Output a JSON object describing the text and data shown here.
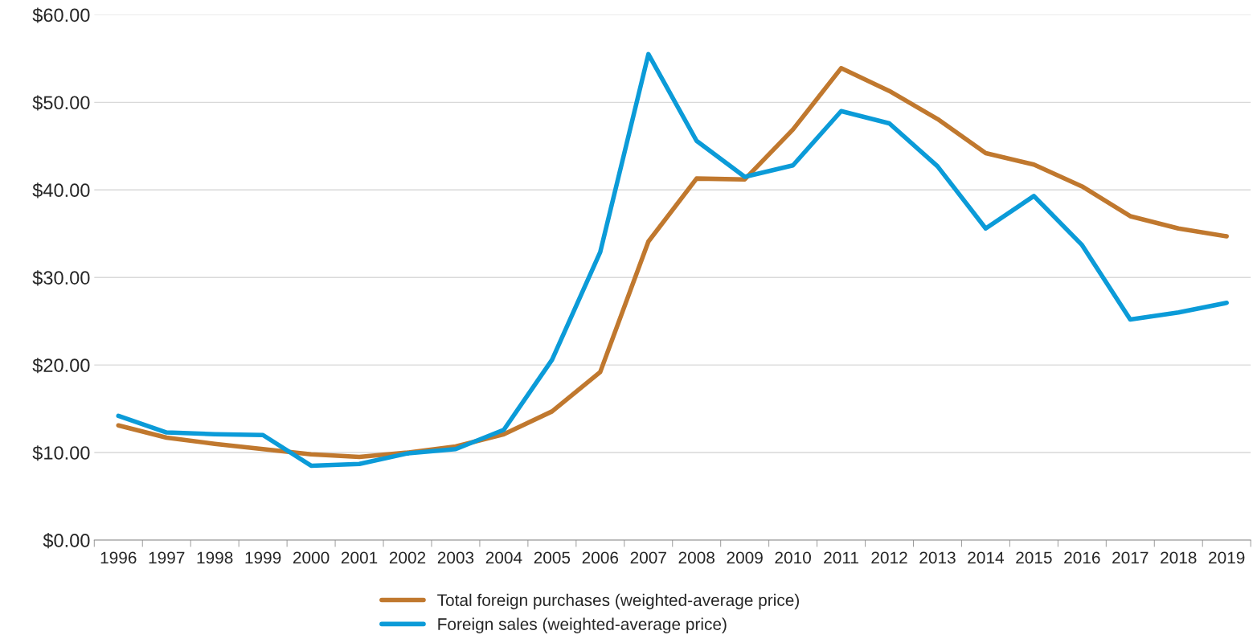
{
  "chart_data": {
    "type": "line",
    "categories": [
      "1996",
      "1997",
      "1998",
      "1999",
      "2000",
      "2001",
      "2002",
      "2003",
      "2004",
      "2005",
      "2006",
      "2007",
      "2008",
      "2009",
      "2010",
      "2011",
      "2012",
      "2013",
      "2014",
      "2015",
      "2016",
      "2017",
      "2018",
      "2019"
    ],
    "series": [
      {
        "name": "Total foreign purchases (weighted-average price)",
        "color": "#c0782e",
        "values": [
          13.1,
          11.7,
          11.0,
          10.4,
          9.8,
          9.5,
          10.0,
          10.7,
          12.1,
          14.7,
          19.2,
          34.1,
          41.3,
          41.2,
          46.9,
          53.9,
          51.3,
          48.1,
          44.2,
          42.9,
          40.4,
          37.0,
          35.6,
          34.7
        ]
      },
      {
        "name": "Foreign sales (weighted-average price)",
        "color": "#0b9bd8",
        "values": [
          14.2,
          12.3,
          12.1,
          12.0,
          8.5,
          8.7,
          9.9,
          10.4,
          12.6,
          20.6,
          32.9,
          55.5,
          45.6,
          41.5,
          42.8,
          49.0,
          47.6,
          42.7,
          35.6,
          39.3,
          33.7,
          25.2,
          26.0,
          27.1
        ]
      }
    ],
    "ylim": [
      0,
      60
    ],
    "yticks": [
      {
        "value": 0,
        "label": "$0.00"
      },
      {
        "value": 10,
        "label": "$10.00"
      },
      {
        "value": 20,
        "label": "$20.00"
      },
      {
        "value": 30,
        "label": "$30.00"
      },
      {
        "value": 40,
        "label": "$40.00"
      },
      {
        "value": 50,
        "label": "$50.00"
      },
      {
        "value": 60,
        "label": "$60.00"
      }
    ],
    "grid": "y",
    "legend": "bottom",
    "marker": "none",
    "line_style": "solid"
  }
}
